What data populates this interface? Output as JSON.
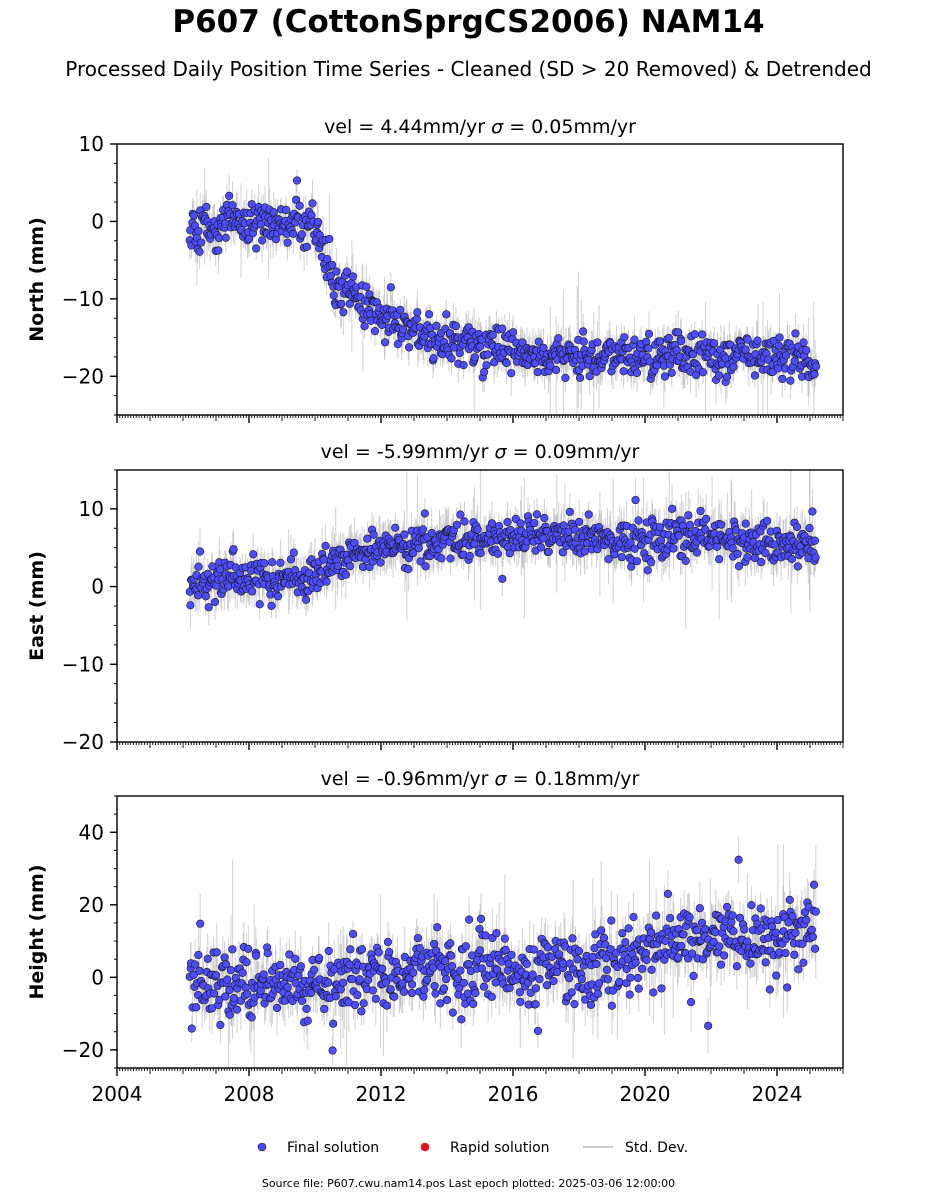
{
  "title": "P607 (CottonSprgCS2006) NAM14",
  "subtitle": "Processed Daily Position Time Series - Cleaned (SD > 20 Removed) & Detrended",
  "source_note": "Source file: P607.cwu.nam14.pos  Last epoch plotted: 2025-03-06 12:00:00",
  "colors": {
    "final": "#4b4bff",
    "final_edge": "#1a1a1a",
    "rapid": "#e0141e",
    "stddev": "#bdbdbd"
  },
  "chart_data": [
    {
      "type": "scatter",
      "vel_prefix": "vel = ",
      "vel_value": "4.44mm/yr",
      "sigma_symbol": "σ",
      "sigma_value": " = 0.05mm/yr",
      "ylabel": "North (mm)",
      "xlim": [
        2004,
        2026
      ],
      "ylim": [
        -25,
        10
      ],
      "yticks": [
        10,
        0,
        -10,
        -20
      ],
      "ytick_labels": [
        "10",
        "0",
        "−10",
        "−20"
      ],
      "series": [
        {
          "name": "Final solution",
          "x": [
            2006.2,
            2006.6,
            2007.0,
            2007.5,
            2008.0,
            2008.5,
            2009.0,
            2009.5,
            2010.0,
            2010.1,
            2010.3,
            2010.6,
            2011.0,
            2011.5,
            2012.0,
            2012.5,
            2013.0,
            2013.5,
            2014.0,
            2014.5,
            2015.0,
            2015.5,
            2016.0,
            2016.5,
            2017.0,
            2017.5,
            2018.0,
            2018.5,
            2019.0,
            2019.5,
            2020.0,
            2020.5,
            2021.0,
            2021.5,
            2022.0,
            2022.5,
            2023.0,
            2023.5,
            2024.0,
            2024.5,
            2025.0,
            2025.18
          ],
          "y": [
            -1,
            0,
            -1,
            0,
            -0.5,
            0,
            -0.5,
            0,
            0,
            -1,
            -5,
            -7.5,
            -9.5,
            -11,
            -12.5,
            -13.5,
            -14.5,
            -15.5,
            -15.5,
            -16,
            -16,
            -16.5,
            -17,
            -17,
            -17.5,
            -17.5,
            -17,
            -17.5,
            -17.5,
            -17.5,
            -17.5,
            -17.5,
            -17.5,
            -17,
            -17.5,
            -17.5,
            -17.5,
            -17.5,
            -17.5,
            -17.5,
            -18,
            -18
          ]
        }
      ]
    },
    {
      "type": "scatter",
      "vel_prefix": "vel = ",
      "vel_value": "-5.99mm/yr",
      "sigma_symbol": "σ",
      "sigma_value": " = 0.09mm/yr",
      "ylabel": "East (mm)",
      "xlim": [
        2004,
        2026
      ],
      "ylim": [
        -20,
        15
      ],
      "yticks": [
        10,
        0,
        -10,
        -20
      ],
      "ytick_labels": [
        "10",
        "0",
        "−10",
        "−20"
      ],
      "series": [
        {
          "name": "Final solution",
          "x": [
            2006.2,
            2006.6,
            2007.0,
            2007.5,
            2008.0,
            2008.5,
            2009.0,
            2009.5,
            2010.0,
            2010.3,
            2010.6,
            2011.0,
            2011.5,
            2012.0,
            2012.5,
            2013.0,
            2013.5,
            2014.0,
            2014.5,
            2015.0,
            2015.5,
            2016.0,
            2016.5,
            2017.0,
            2017.5,
            2018.0,
            2018.5,
            2019.0,
            2019.5,
            2020.0,
            2020.5,
            2021.0,
            2021.5,
            2022.0,
            2022.5,
            2023.0,
            2023.5,
            2024.0,
            2024.5,
            2025.0,
            2025.18
          ],
          "y": [
            -0.5,
            0.5,
            1,
            1.5,
            0.5,
            1,
            1,
            1,
            1.5,
            2.5,
            3.5,
            4,
            4.5,
            4.5,
            5,
            5,
            5.5,
            6,
            6,
            6,
            6.5,
            6.5,
            6.5,
            6.5,
            6.5,
            6,
            6,
            6,
            6,
            6,
            6,
            6.5,
            6.5,
            6.5,
            6,
            6,
            6,
            5.5,
            5.5,
            5,
            5
          ]
        }
      ]
    },
    {
      "type": "scatter",
      "vel_prefix": "vel = ",
      "vel_value": "-0.96mm/yr",
      "sigma_symbol": "σ",
      "sigma_value": " = 0.18mm/yr",
      "ylabel": "Height (mm)",
      "xlim": [
        2004,
        2026
      ],
      "ylim": [
        -25,
        50
      ],
      "yticks": [
        40,
        20,
        0,
        -20
      ],
      "ytick_labels": [
        "40",
        "20",
        "0",
        "−20"
      ],
      "xticks": [
        2004,
        2008,
        2012,
        2016,
        2020,
        2024
      ],
      "xtick_labels": [
        "2004",
        "2008",
        "2012",
        "2016",
        "2020",
        "2024"
      ],
      "series": [
        {
          "name": "Final solution",
          "x": [
            2006.2,
            2006.6,
            2007.0,
            2007.5,
            2008.0,
            2008.5,
            2009.0,
            2009.5,
            2010.0,
            2010.5,
            2011.0,
            2011.5,
            2012.0,
            2012.5,
            2013.0,
            2013.5,
            2014.0,
            2014.5,
            2015.0,
            2015.5,
            2016.0,
            2016.5,
            2017.0,
            2017.5,
            2018.0,
            2018.5,
            2019.0,
            2019.5,
            2020.0,
            2020.5,
            2021.0,
            2021.5,
            2022.0,
            2022.5,
            2023.0,
            2023.5,
            2024.0,
            2024.5,
            2025.0,
            2025.18
          ],
          "y": [
            0,
            -2,
            -3,
            -4,
            -3,
            -2,
            -3,
            -2,
            -2,
            -1,
            0,
            0,
            1,
            1,
            1,
            2,
            2,
            2,
            3,
            3,
            3,
            3,
            3,
            3,
            3,
            3,
            3,
            4,
            7,
            9,
            10,
            10,
            11,
            11,
            11,
            11,
            10,
            12,
            14,
            14
          ]
        }
      ]
    }
  ],
  "legend": {
    "items": [
      {
        "label": "Final solution",
        "symbol": "final"
      },
      {
        "label": "Rapid solution",
        "symbol": "rapid"
      },
      {
        "label": "Std. Dev.",
        "symbol": "stddev"
      }
    ]
  }
}
